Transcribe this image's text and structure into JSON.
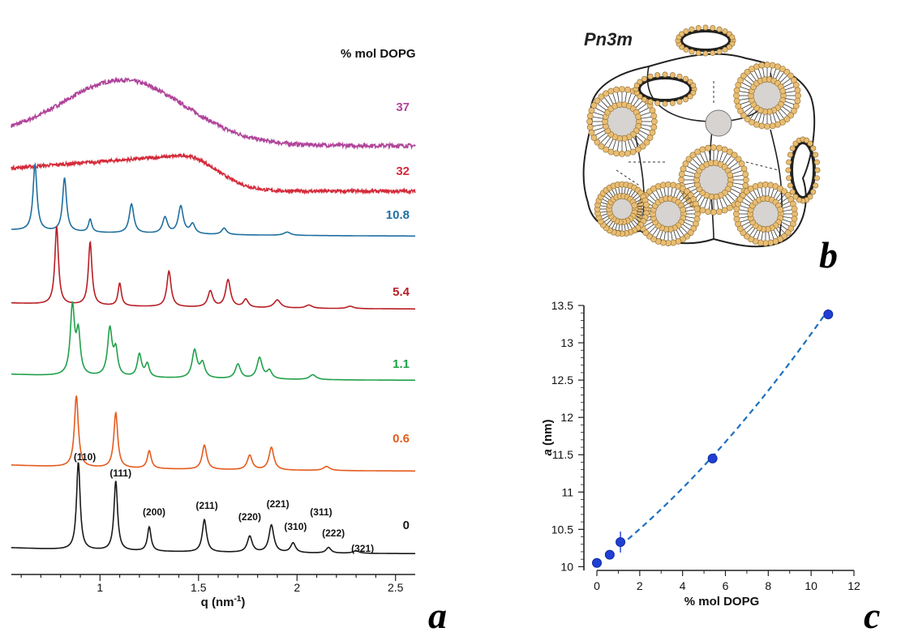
{
  "panel_letters": {
    "a": "a",
    "b": "b",
    "c": "c"
  },
  "structure_title": "Pn3m",
  "chart_data": [
    {
      "id": "saxs",
      "type": "line",
      "xlabel": "q (nm-1)",
      "xlabel_main": "q (nm",
      "xlabel_sup": "-1",
      "xlabel_close": ")",
      "xlim": [
        0.55,
        2.6
      ],
      "xticks": [
        1,
        1.5,
        2,
        2.5
      ],
      "xtick_labels": [
        "1",
        "1.5",
        "2",
        "2.5"
      ],
      "legend_title": "% mol DOPG",
      "series": [
        {
          "name": "37",
          "color": "#b0449a",
          "shape": "broad",
          "center": 1.12,
          "width": 0.42,
          "height": 78,
          "noise": 2.5
        },
        {
          "name": "32",
          "color": "#d42a3a",
          "shape": "broad_edge",
          "center": 1.42,
          "width": 0.35,
          "height": 44,
          "noise": 2.0
        },
        {
          "name": "10.8",
          "color": "#1f6fa0",
          "shape": "peaks",
          "peaks": [
            [
              0.67,
              82,
              0.012
            ],
            [
              0.82,
              66,
              0.012
            ],
            [
              0.95,
              16,
              0.01
            ],
            [
              1.16,
              36,
              0.014
            ],
            [
              1.33,
              20,
              0.015
            ],
            [
              1.41,
              34,
              0.015
            ],
            [
              1.47,
              12,
              0.015
            ],
            [
              1.63,
              8,
              0.015
            ],
            [
              1.95,
              4,
              0.02
            ]
          ]
        },
        {
          "name": "5.4",
          "color": "#b81e24",
          "shape": "peaks",
          "peaks": [
            [
              0.78,
              96,
              0.011
            ],
            [
              0.95,
              78,
              0.011
            ],
            [
              1.1,
              28,
              0.01
            ],
            [
              1.35,
              44,
              0.013
            ],
            [
              1.56,
              20,
              0.015
            ],
            [
              1.65,
              34,
              0.015
            ],
            [
              1.74,
              10,
              0.015
            ],
            [
              1.9,
              10,
              0.02
            ],
            [
              2.06,
              4,
              0.02
            ],
            [
              2.27,
              3,
              0.02
            ]
          ]
        },
        {
          "name": "1.1",
          "color": "#21a04a",
          "shape": "peaks",
          "peaks": [
            [
              0.86,
              84,
              0.013
            ],
            [
              0.89,
              50,
              0.012
            ],
            [
              1.05,
              58,
              0.014
            ],
            [
              1.08,
              30,
              0.012
            ],
            [
              1.2,
              28,
              0.013
            ],
            [
              1.24,
              16,
              0.012
            ],
            [
              1.48,
              34,
              0.015
            ],
            [
              1.52,
              18,
              0.015
            ],
            [
              1.7,
              18,
              0.016
            ],
            [
              1.81,
              26,
              0.016
            ],
            [
              1.86,
              10,
              0.015
            ],
            [
              2.08,
              6,
              0.02
            ]
          ]
        },
        {
          "name": "0.6",
          "color": "#e55b1e",
          "shape": "peaks",
          "peaks": [
            [
              0.88,
              88,
              0.012
            ],
            [
              1.08,
              68,
              0.012
            ],
            [
              1.25,
              22,
              0.012
            ],
            [
              1.53,
              30,
              0.014
            ],
            [
              1.76,
              18,
              0.015
            ],
            [
              1.87,
              28,
              0.015
            ],
            [
              2.15,
              5,
              0.02
            ]
          ]
        },
        {
          "name": "0",
          "color": "#1a1a1a",
          "shape": "peaks",
          "peaks": [
            [
              0.89,
              108,
              0.011
            ],
            [
              1.08,
              86,
              0.011
            ],
            [
              1.25,
              30,
              0.011
            ],
            [
              1.53,
              40,
              0.013
            ],
            [
              1.76,
              20,
              0.015
            ],
            [
              1.87,
              34,
              0.015
            ],
            [
              1.98,
              12,
              0.015
            ],
            [
              2.16,
              7,
              0.015
            ],
            [
              2.3,
              3,
              0.02
            ]
          ]
        }
      ],
      "hkl_labels": [
        {
          "label": "(110)",
          "q": 0.89
        },
        {
          "label": "(111)",
          "q": 1.08
        },
        {
          "label": "(200)",
          "q": 1.25
        },
        {
          "label": "(211)",
          "q": 1.53
        },
        {
          "label": "(220)",
          "q": 1.76
        },
        {
          "label": "(221)",
          "q": 1.87
        },
        {
          "label": "(310)",
          "q": 1.98
        },
        {
          "label": "(311)",
          "q": 2.04
        },
        {
          "label": "(222)",
          "q": 2.16
        },
        {
          "label": "(321)",
          "q": 2.3
        }
      ]
    },
    {
      "id": "lattice",
      "type": "scatter",
      "xlabel": "% mol DOPG",
      "ylabel": "a (nm)",
      "ylabel_var": "a",
      "ylabel_unit": " (nm)",
      "xlim": [
        -0.3,
        12
      ],
      "ylim": [
        9.95,
        13.5
      ],
      "xticks": [
        0,
        2,
        4,
        6,
        8,
        10,
        12
      ],
      "yticks": [
        10,
        10.5,
        11,
        11.5,
        12,
        12.5,
        13,
        13.5
      ],
      "ytick_labels": [
        "10",
        "10.5",
        "11",
        "11.5",
        "12",
        "12.5",
        "13",
        "13.5"
      ],
      "points": [
        {
          "x": 0,
          "y": 10.05,
          "err": 0
        },
        {
          "x": 0.6,
          "y": 10.16,
          "err": 0
        },
        {
          "x": 1.1,
          "y": 10.33,
          "err": 0.14
        },
        {
          "x": 5.4,
          "y": 11.45,
          "err": 0
        },
        {
          "x": 10.8,
          "y": 13.38,
          "err": 0
        }
      ],
      "fit": {
        "style": "dashed",
        "color": "#1e6fbf"
      },
      "marker_color": "#1f3fd6"
    }
  ]
}
